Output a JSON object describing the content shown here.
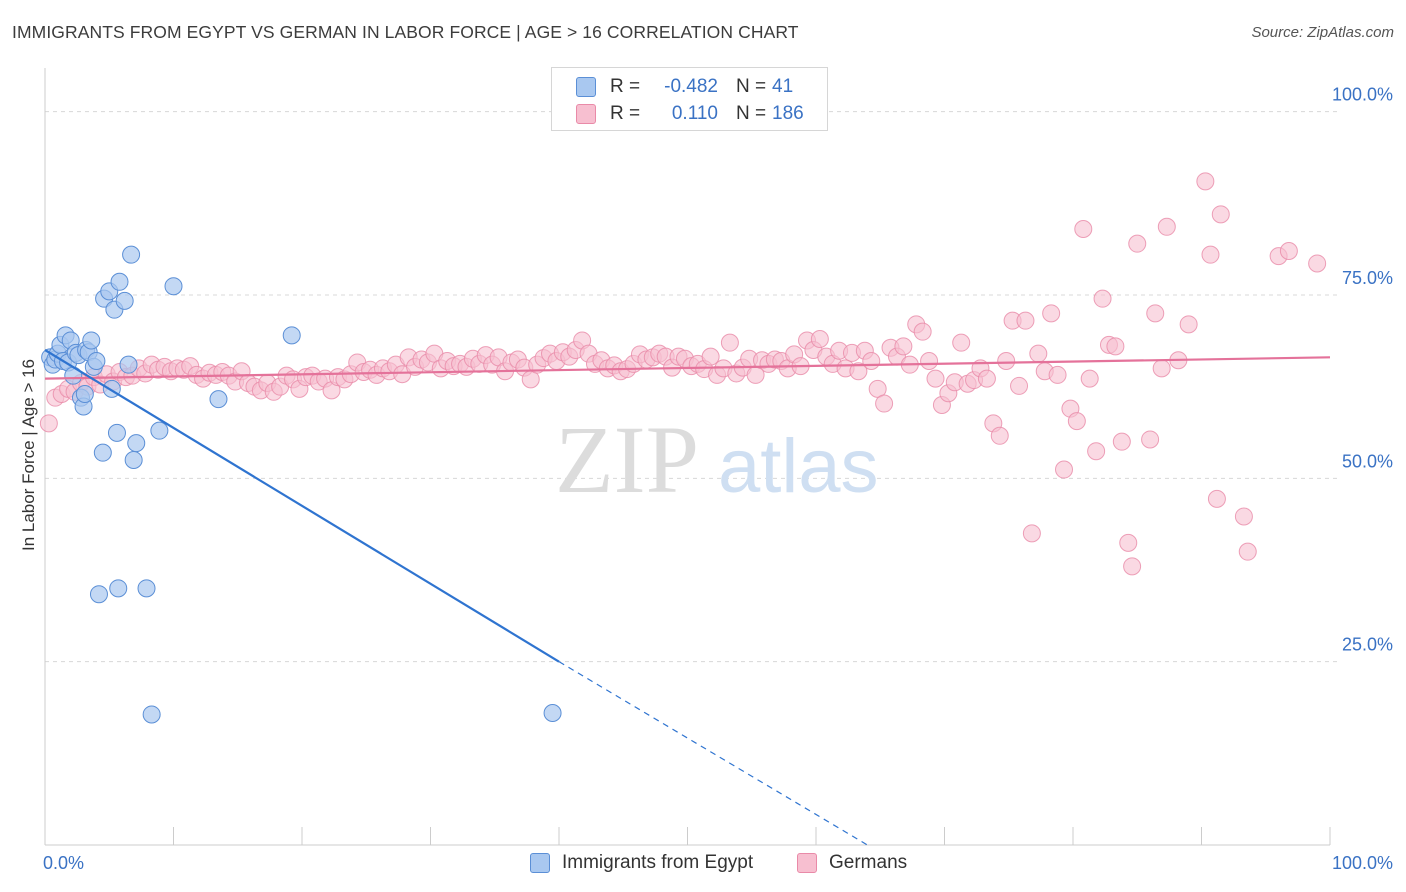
{
  "header": {
    "title": "IMMIGRANTS FROM EGYPT VS GERMAN IN LABOR FORCE | AGE > 16 CORRELATION CHART",
    "source": "Source: ZipAtlas.com"
  },
  "colors": {
    "egypt_fill": "#a9c8f0",
    "egypt_stroke": "#5b8fd6",
    "egypt_line": "#2f74d0",
    "german_fill": "#f7bfd0",
    "german_stroke": "#e98aa8",
    "german_line": "#e4729a",
    "tick_text": "#3a72c4",
    "grid": "#d8d8d8"
  },
  "legend": {
    "rows": [
      {
        "r_label": "R =",
        "r_value": "-0.482",
        "n_label": "N =",
        "n_value": "41"
      },
      {
        "r_label": "R =",
        "r_value": "0.110",
        "n_label": "N =",
        "n_value": "186"
      }
    ]
  },
  "bottom_legend": {
    "egypt": "Immigrants from Egypt",
    "german": "Germans"
  },
  "watermark": {
    "zip": "ZIP",
    "atlas": "atlas"
  },
  "chart_data": {
    "type": "scatter",
    "ylabel": "In Labor Force | Age > 16",
    "xlim": [
      0,
      100
    ],
    "ylim": [
      0,
      105
    ],
    "x_tick_labels": [
      "0.0%",
      "100.0%"
    ],
    "y_ticks": [
      {
        "value": 25,
        "label": "25.0%"
      },
      {
        "value": 50,
        "label": "50.0%"
      },
      {
        "value": 75,
        "label": "75.0%"
      },
      {
        "value": 100,
        "label": "100.0%"
      }
    ],
    "grid": "horizontal dashed",
    "series": [
      {
        "name": "Immigrants from Egypt",
        "points": [
          [
            0.4,
            66.5
          ],
          [
            0.6,
            65.5
          ],
          [
            0.8,
            66.2
          ],
          [
            1.0,
            67.0
          ],
          [
            1.2,
            68.2
          ],
          [
            1.4,
            66.0
          ],
          [
            1.6,
            69.5
          ],
          [
            1.8,
            65.8
          ],
          [
            2.0,
            68.8
          ],
          [
            2.2,
            64.0
          ],
          [
            2.4,
            67.1
          ],
          [
            2.6,
            66.8
          ],
          [
            2.8,
            61.0
          ],
          [
            3.0,
            59.8
          ],
          [
            3.2,
            67.5
          ],
          [
            3.4,
            67.2
          ],
          [
            3.6,
            68.8
          ],
          [
            3.8,
            65.2
          ],
          [
            4.0,
            66.0
          ],
          [
            4.2,
            34.2
          ],
          [
            4.6,
            74.5
          ],
          [
            5.0,
            75.5
          ],
          [
            5.2,
            62.2
          ],
          [
            5.4,
            73.0
          ],
          [
            5.6,
            56.2
          ],
          [
            5.8,
            76.8
          ],
          [
            6.2,
            74.2
          ],
          [
            6.5,
            65.5
          ],
          [
            6.7,
            80.5
          ],
          [
            6.9,
            52.5
          ],
          [
            7.1,
            54.8
          ],
          [
            7.9,
            35.0
          ],
          [
            8.3,
            17.8
          ],
          [
            8.9,
            56.5
          ],
          [
            10.0,
            76.2
          ],
          [
            13.5,
            60.8
          ],
          [
            19.2,
            69.5
          ],
          [
            39.5,
            18.0
          ],
          [
            4.5,
            53.5
          ],
          [
            3.1,
            61.5
          ],
          [
            5.7,
            35.0
          ]
        ],
        "trend": {
          "x0": 0,
          "y0": 67.5,
          "x1": 40,
          "y1": 25.0,
          "dash_x1": 64,
          "dash_y1": 0
        }
      },
      {
        "name": "Germans",
        "points": [
          [
            0.3,
            57.5
          ],
          [
            0.8,
            61.0
          ],
          [
            1.3,
            61.5
          ],
          [
            1.8,
            62.2
          ],
          [
            2.3,
            61.8
          ],
          [
            2.8,
            63.0
          ],
          [
            3.3,
            62.5
          ],
          [
            3.8,
            63.8
          ],
          [
            4.3,
            62.8
          ],
          [
            4.8,
            64.2
          ],
          [
            5.3,
            63.2
          ],
          [
            5.8,
            64.5
          ],
          [
            6.3,
            63.8
          ],
          [
            6.8,
            64.0
          ],
          [
            7.3,
            65.0
          ],
          [
            7.8,
            64.3
          ],
          [
            8.3,
            65.5
          ],
          [
            8.8,
            64.8
          ],
          [
            9.3,
            65.2
          ],
          [
            9.8,
            64.6
          ],
          [
            10.3,
            65.0
          ],
          [
            10.8,
            64.8
          ],
          [
            11.3,
            65.3
          ],
          [
            11.8,
            64.1
          ],
          [
            12.3,
            63.6
          ],
          [
            12.8,
            64.4
          ],
          [
            13.3,
            64.1
          ],
          [
            13.8,
            64.5
          ],
          [
            14.3,
            64.0
          ],
          [
            14.8,
            63.2
          ],
          [
            15.3,
            64.6
          ],
          [
            15.8,
            63.0
          ],
          [
            16.3,
            62.5
          ],
          [
            16.8,
            62.0
          ],
          [
            17.3,
            63.0
          ],
          [
            17.8,
            61.8
          ],
          [
            18.3,
            62.5
          ],
          [
            18.8,
            64.0
          ],
          [
            19.3,
            63.5
          ],
          [
            19.8,
            62.2
          ],
          [
            20.3,
            63.8
          ],
          [
            20.8,
            64.0
          ],
          [
            21.3,
            63.2
          ],
          [
            21.8,
            63.6
          ],
          [
            22.3,
            62.0
          ],
          [
            22.8,
            63.8
          ],
          [
            23.3,
            63.5
          ],
          [
            23.8,
            64.2
          ],
          [
            24.3,
            65.8
          ],
          [
            24.8,
            64.5
          ],
          [
            25.3,
            64.8
          ],
          [
            25.8,
            64.1
          ],
          [
            26.3,
            65.0
          ],
          [
            26.8,
            64.6
          ],
          [
            27.3,
            65.5
          ],
          [
            27.8,
            64.2
          ],
          [
            28.3,
            66.5
          ],
          [
            28.8,
            65.2
          ],
          [
            29.3,
            66.2
          ],
          [
            29.8,
            65.8
          ],
          [
            30.3,
            67.0
          ],
          [
            30.8,
            65.0
          ],
          [
            31.3,
            66.0
          ],
          [
            31.8,
            65.3
          ],
          [
            32.3,
            65.6
          ],
          [
            32.8,
            65.2
          ],
          [
            33.3,
            66.3
          ],
          [
            33.8,
            65.6
          ],
          [
            34.3,
            66.8
          ],
          [
            34.8,
            65.5
          ],
          [
            35.3,
            66.5
          ],
          [
            35.8,
            64.6
          ],
          [
            36.3,
            65.8
          ],
          [
            36.8,
            66.2
          ],
          [
            37.3,
            65.1
          ],
          [
            37.8,
            63.5
          ],
          [
            38.3,
            65.5
          ],
          [
            38.8,
            66.4
          ],
          [
            39.3,
            67.0
          ],
          [
            39.8,
            66.0
          ],
          [
            40.3,
            67.2
          ],
          [
            40.8,
            66.6
          ],
          [
            41.3,
            67.5
          ],
          [
            41.8,
            68.8
          ],
          [
            42.3,
            67.0
          ],
          [
            42.8,
            65.6
          ],
          [
            43.3,
            66.1
          ],
          [
            43.8,
            65.0
          ],
          [
            44.3,
            65.4
          ],
          [
            44.8,
            64.6
          ],
          [
            45.3,
            64.9
          ],
          [
            45.8,
            65.6
          ],
          [
            46.3,
            66.9
          ],
          [
            46.8,
            66.2
          ],
          [
            47.3,
            66.5
          ],
          [
            47.8,
            67.0
          ],
          [
            48.3,
            66.6
          ],
          [
            48.8,
            65.1
          ],
          [
            49.3,
            66.6
          ],
          [
            49.8,
            66.3
          ],
          [
            50.3,
            65.3
          ],
          [
            50.8,
            65.6
          ],
          [
            51.3,
            64.9
          ],
          [
            51.8,
            66.6
          ],
          [
            52.3,
            64.1
          ],
          [
            52.8,
            65.0
          ],
          [
            53.3,
            68.5
          ],
          [
            53.8,
            64.3
          ],
          [
            54.3,
            65.1
          ],
          [
            54.8,
            66.3
          ],
          [
            55.3,
            64.1
          ],
          [
            55.8,
            66.1
          ],
          [
            56.3,
            65.6
          ],
          [
            56.8,
            66.2
          ],
          [
            57.3,
            66.0
          ],
          [
            57.8,
            65.0
          ],
          [
            58.3,
            66.9
          ],
          [
            58.8,
            65.3
          ],
          [
            59.3,
            68.8
          ],
          [
            59.8,
            67.5
          ],
          [
            60.3,
            69.0
          ],
          [
            60.8,
            66.6
          ],
          [
            61.3,
            65.6
          ],
          [
            61.8,
            67.4
          ],
          [
            62.3,
            65.0
          ],
          [
            62.8,
            67.1
          ],
          [
            63.3,
            64.6
          ],
          [
            63.8,
            67.4
          ],
          [
            64.3,
            66.0
          ],
          [
            64.8,
            62.2
          ],
          [
            65.3,
            60.2
          ],
          [
            65.8,
            67.8
          ],
          [
            66.3,
            66.6
          ],
          [
            66.8,
            68.0
          ],
          [
            67.3,
            65.5
          ],
          [
            67.8,
            71.0
          ],
          [
            68.3,
            70.0
          ],
          [
            68.8,
            66.0
          ],
          [
            69.3,
            63.6
          ],
          [
            69.8,
            60.0
          ],
          [
            70.3,
            61.6
          ],
          [
            70.8,
            63.1
          ],
          [
            71.3,
            68.5
          ],
          [
            71.8,
            62.9
          ],
          [
            72.3,
            63.4
          ],
          [
            72.8,
            65.0
          ],
          [
            73.3,
            63.6
          ],
          [
            73.8,
            57.5
          ],
          [
            74.3,
            55.8
          ],
          [
            74.8,
            66.0
          ],
          [
            75.3,
            71.5
          ],
          [
            75.8,
            62.6
          ],
          [
            76.3,
            71.5
          ],
          [
            76.8,
            42.5
          ],
          [
            77.3,
            67.0
          ],
          [
            77.8,
            64.6
          ],
          [
            78.3,
            72.5
          ],
          [
            78.8,
            64.1
          ],
          [
            79.3,
            51.2
          ],
          [
            79.8,
            59.5
          ],
          [
            80.3,
            57.8
          ],
          [
            80.8,
            84.0
          ],
          [
            81.3,
            63.6
          ],
          [
            81.8,
            53.7
          ],
          [
            82.3,
            74.5
          ],
          [
            82.8,
            68.2
          ],
          [
            83.3,
            68.0
          ],
          [
            83.8,
            55.0
          ],
          [
            84.3,
            41.2
          ],
          [
            84.6,
            38.0
          ],
          [
            85.0,
            82.0
          ],
          [
            86.0,
            55.3
          ],
          [
            86.4,
            72.5
          ],
          [
            86.9,
            65.0
          ],
          [
            87.3,
            84.3
          ],
          [
            88.2,
            66.1
          ],
          [
            89.0,
            71.0
          ],
          [
            90.3,
            90.5
          ],
          [
            90.7,
            80.5
          ],
          [
            91.2,
            47.2
          ],
          [
            91.5,
            86.0
          ],
          [
            93.3,
            44.8
          ],
          [
            93.6,
            40.0
          ],
          [
            96.0,
            80.3
          ],
          [
            96.8,
            81.0
          ],
          [
            99.0,
            79.3
          ]
        ],
        "trend": {
          "x0": 0,
          "y0": 63.6,
          "x1": 100,
          "y1": 66.5
        }
      }
    ]
  }
}
